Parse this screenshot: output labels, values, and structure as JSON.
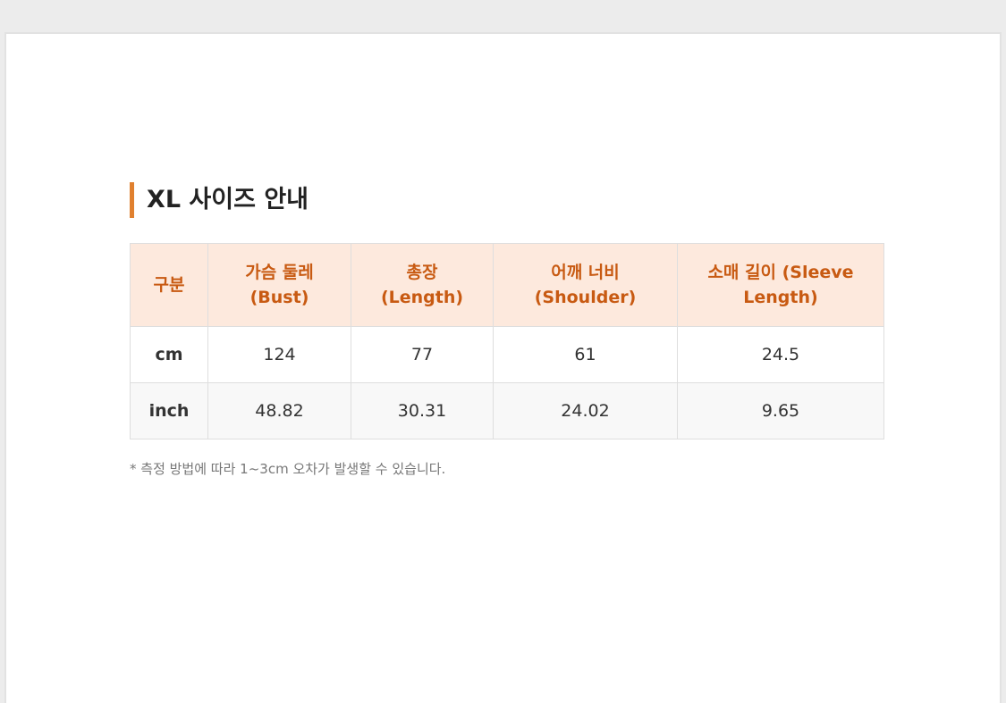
{
  "title": "XL 사이즈 안내",
  "table": {
    "header": [
      [
        "구분"
      ],
      [
        "가슴 둘레",
        "(Bust)"
      ],
      [
        "총장",
        "(Length)"
      ],
      [
        "어깨 너비",
        "(Shoulder)"
      ],
      [
        "소매 길이 (Sleeve",
        "Length)"
      ]
    ],
    "rows": [
      [
        "cm",
        "124",
        "77",
        "61",
        "24.5"
      ],
      [
        "inch",
        "48.82",
        "30.31",
        "24.02",
        "9.65"
      ]
    ]
  },
  "note": "* 측정 방법에 따라 1~3cm 오차가 발생할 수 있습니다."
}
